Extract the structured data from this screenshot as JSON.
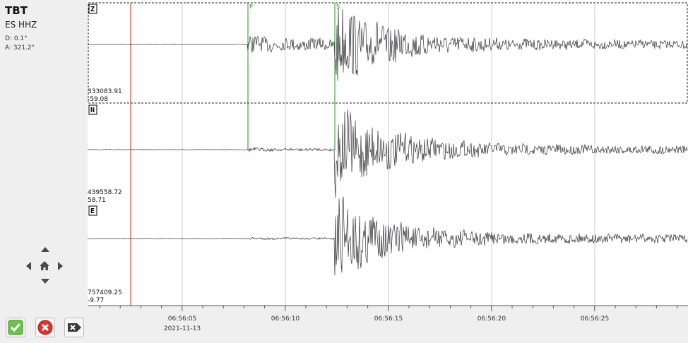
{
  "station": {
    "code": "TBT",
    "channel": "ES  HHZ",
    "distance": "D:  0.1°",
    "azimuth": "A:  321.2°"
  },
  "colors": {
    "pick": "#1a9a1a",
    "origin": "#d22020",
    "grid": "#c8c8e4",
    "trace": "#333333"
  },
  "components": [
    {
      "id": "Z",
      "label": "Z",
      "scale_top": "333083.91",
      "scale_bottom": "-59.08"
    },
    {
      "id": "N",
      "label": "N",
      "scale_top": "439558.72",
      "scale_bottom": "58.71"
    },
    {
      "id": "E",
      "label": "E",
      "scale_top": "757409.25",
      "scale_bottom": "-9.77"
    }
  ],
  "picks": {
    "p_label": "P",
    "s_label": "S"
  },
  "time_axis": {
    "labels": [
      "06:56:05",
      "06:56:10",
      "06:56:15",
      "06:56:20",
      "06:56:25"
    ],
    "date": "2021-11-13"
  },
  "nav_icons": [
    "up-arrow-icon",
    "left-arrow-icon",
    "home-icon",
    "right-arrow-icon",
    "down-arrow-icon"
  ],
  "buttons": {
    "accept": "checkmark-icon",
    "reject": "reject-icon",
    "disable": "disable-icon"
  }
}
